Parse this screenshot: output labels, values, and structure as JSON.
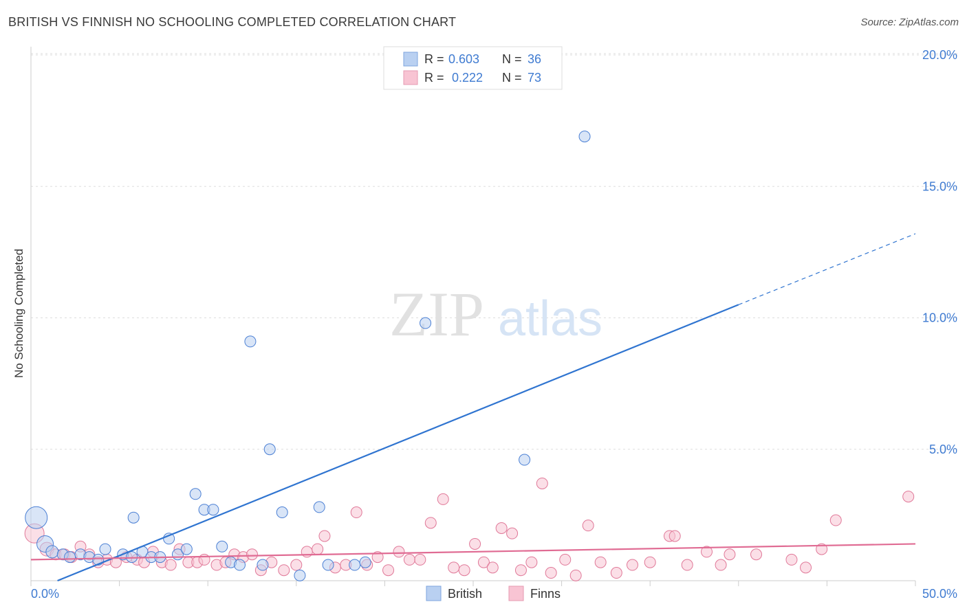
{
  "title": "BRITISH VS FINNISH NO SCHOOLING COMPLETED CORRELATION CHART",
  "source": "Source: ZipAtlas.com",
  "watermark": {
    "zip": "ZIP",
    "atlas": "atlas"
  },
  "colors": {
    "british": "#4a7fd4",
    "british_fill": "#b9d0f1",
    "british_line": "#2f74d0",
    "finns": "#e07898",
    "finns_fill": "#f8c4d3",
    "finns_line": "#e06b93",
    "axis_label": "#3f7bd1",
    "grid": "#dddddd"
  },
  "legend": {
    "rows": [
      {
        "r_label": "R =",
        "r_value": "0.603",
        "n_label": "N =",
        "n_value": "36"
      },
      {
        "r_label": "R =",
        "r_value": "0.222",
        "n_label": "N =",
        "n_value": "73"
      }
    ]
  },
  "chart_data": {
    "type": "scatter",
    "title": "BRITISH VS FINNISH NO SCHOOLING COMPLETED CORRELATION CHART",
    "xlabel": "",
    "ylabel": "No Schooling Completed",
    "xlim": [
      0,
      50
    ],
    "ylim": [
      0,
      20.5
    ],
    "x_tick_labels": [
      "0.0%",
      "50.0%"
    ],
    "y_ticks": [
      5,
      10,
      15,
      20
    ],
    "y_tick_labels": [
      "5.0%",
      "10.0%",
      "15.0%",
      "20.0%"
    ],
    "grid": true,
    "series": [
      {
        "name": "British",
        "r": 0.603,
        "n": 36,
        "trend": {
          "x0": 1.5,
          "y0": 0.0,
          "x1": 40.0,
          "y1": 10.5,
          "dash_to_x": 50.0,
          "dash_to_y": 13.2
        },
        "points": [
          [
            0.3,
            2.4,
            16
          ],
          [
            0.8,
            1.4,
            12
          ],
          [
            1.2,
            1.1,
            9
          ],
          [
            1.8,
            1.0,
            8
          ],
          [
            2.2,
            0.9,
            8
          ],
          [
            2.8,
            1.0,
            8
          ],
          [
            3.3,
            0.9,
            8
          ],
          [
            3.8,
            0.8,
            8
          ],
          [
            4.2,
            1.2,
            8
          ],
          [
            5.2,
            1.0,
            8
          ],
          [
            5.8,
            2.4,
            8
          ],
          [
            6.3,
            1.1,
            8
          ],
          [
            6.8,
            0.9,
            8
          ],
          [
            7.3,
            0.9,
            8
          ],
          [
            7.8,
            1.6,
            8
          ],
          [
            8.3,
            1.0,
            8
          ],
          [
            8.8,
            1.2,
            8
          ],
          [
            9.3,
            3.3,
            8
          ],
          [
            9.8,
            2.7,
            8
          ],
          [
            10.3,
            2.7,
            8
          ],
          [
            10.8,
            1.3,
            8
          ],
          [
            11.3,
            0.7,
            8
          ],
          [
            11.8,
            0.6,
            8
          ],
          [
            12.4,
            9.1,
            8
          ],
          [
            13.1,
            0.6,
            8
          ],
          [
            13.5,
            5.0,
            8
          ],
          [
            14.2,
            2.6,
            8
          ],
          [
            15.2,
            0.2,
            8
          ],
          [
            16.3,
            2.8,
            8
          ],
          [
            16.8,
            0.6,
            8
          ],
          [
            18.3,
            0.6,
            8
          ],
          [
            18.9,
            0.7,
            8
          ],
          [
            22.3,
            9.8,
            8
          ],
          [
            27.9,
            4.6,
            8
          ],
          [
            31.3,
            16.9,
            8
          ],
          [
            5.7,
            0.9,
            8
          ]
        ]
      },
      {
        "name": "Finns",
        "r": 0.222,
        "n": 73,
        "trend": {
          "x0": 0.0,
          "y0": 0.8,
          "x1": 50.0,
          "y1": 1.4
        },
        "points": [
          [
            0.2,
            1.8,
            14
          ],
          [
            0.9,
            1.2,
            10
          ],
          [
            1.4,
            1.0,
            8
          ],
          [
            1.9,
            1.0,
            8
          ],
          [
            2.3,
            0.9,
            8
          ],
          [
            2.8,
            1.3,
            8
          ],
          [
            3.3,
            1.0,
            8
          ],
          [
            3.8,
            0.7,
            8
          ],
          [
            4.3,
            0.8,
            8
          ],
          [
            4.8,
            0.7,
            8
          ],
          [
            5.4,
            0.9,
            8
          ],
          [
            6.0,
            0.8,
            8
          ],
          [
            6.4,
            0.7,
            8
          ],
          [
            6.9,
            1.1,
            8
          ],
          [
            7.4,
            0.7,
            8
          ],
          [
            7.9,
            0.6,
            8
          ],
          [
            8.4,
            1.2,
            8
          ],
          [
            8.9,
            0.7,
            8
          ],
          [
            9.4,
            0.7,
            8
          ],
          [
            9.8,
            0.8,
            8
          ],
          [
            10.5,
            0.6,
            8
          ],
          [
            11.0,
            0.7,
            8
          ],
          [
            11.5,
            1.0,
            8
          ],
          [
            12.0,
            0.9,
            8
          ],
          [
            12.5,
            1.0,
            8
          ],
          [
            13.0,
            0.4,
            8
          ],
          [
            13.6,
            0.7,
            8
          ],
          [
            14.3,
            0.4,
            8
          ],
          [
            15.0,
            0.6,
            8
          ],
          [
            15.6,
            1.1,
            8
          ],
          [
            16.2,
            1.2,
            8
          ],
          [
            16.6,
            1.7,
            8
          ],
          [
            17.2,
            0.5,
            8
          ],
          [
            17.8,
            0.6,
            8
          ],
          [
            18.4,
            2.6,
            8
          ],
          [
            19.0,
            0.6,
            8
          ],
          [
            19.6,
            0.9,
            8
          ],
          [
            20.2,
            0.4,
            8
          ],
          [
            20.8,
            1.1,
            8
          ],
          [
            21.4,
            0.8,
            8
          ],
          [
            22.0,
            0.8,
            8
          ],
          [
            22.6,
            2.2,
            8
          ],
          [
            23.3,
            3.1,
            8
          ],
          [
            23.9,
            0.5,
            8
          ],
          [
            24.5,
            0.4,
            8
          ],
          [
            25.1,
            1.4,
            8
          ],
          [
            25.6,
            0.7,
            8
          ],
          [
            26.1,
            0.5,
            8
          ],
          [
            26.6,
            2.0,
            8
          ],
          [
            27.2,
            1.8,
            8
          ],
          [
            27.7,
            0.4,
            8
          ],
          [
            28.3,
            0.7,
            8
          ],
          [
            28.9,
            3.7,
            8
          ],
          [
            29.4,
            0.3,
            8
          ],
          [
            30.2,
            0.8,
            8
          ],
          [
            30.8,
            0.2,
            8
          ],
          [
            31.5,
            2.1,
            8
          ],
          [
            32.2,
            0.7,
            8
          ],
          [
            33.1,
            0.3,
            8
          ],
          [
            34.0,
            0.6,
            8
          ],
          [
            35.0,
            0.7,
            8
          ],
          [
            36.1,
            1.7,
            8
          ],
          [
            36.4,
            1.7,
            8
          ],
          [
            37.1,
            0.6,
            8
          ],
          [
            38.2,
            1.1,
            8
          ],
          [
            39.0,
            0.6,
            8
          ],
          [
            39.5,
            1.0,
            8
          ],
          [
            41.0,
            1.0,
            8
          ],
          [
            43.0,
            0.8,
            8
          ],
          [
            44.7,
            1.2,
            8
          ],
          [
            45.5,
            2.3,
            8
          ],
          [
            49.6,
            3.2,
            8
          ],
          [
            43.8,
            0.5,
            8
          ]
        ]
      }
    ],
    "legend_labels": [
      "British",
      "Finns"
    ]
  }
}
